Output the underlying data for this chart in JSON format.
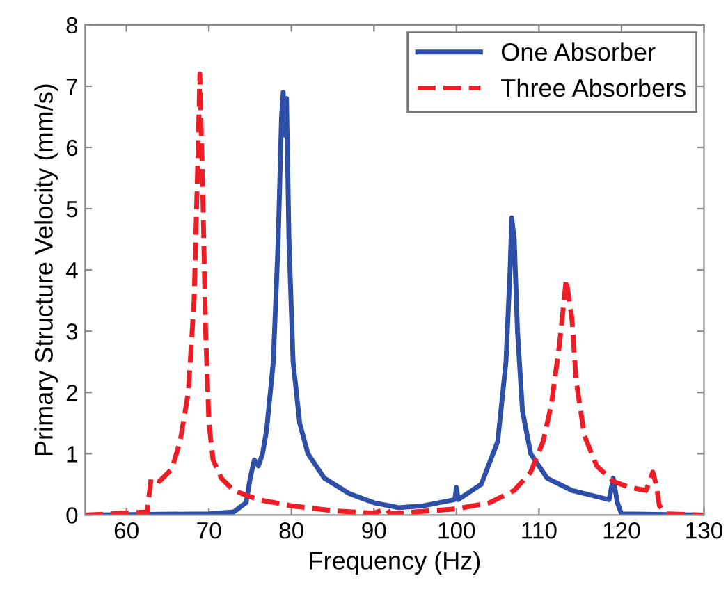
{
  "chart_data": {
    "type": "line",
    "xlabel": "Frequency (Hz)",
    "ylabel": "Primary Structure Velocity (mm/s)",
    "xlim": [
      55,
      130
    ],
    "xticks": [
      60,
      70,
      80,
      90,
      100,
      110,
      120,
      130
    ],
    "ylim": [
      0,
      8
    ],
    "yticks": [
      0,
      1,
      2,
      3,
      4,
      5,
      6,
      7,
      8
    ],
    "grid": false,
    "legend": "top right",
    "marker": "none",
    "series": [
      {
        "name": "One Absorber",
        "color": "#2e4fa8",
        "line_style": "solid",
        "x": [
          55,
          70,
          73,
          74.5,
          75,
          75.5,
          76,
          76.5,
          77,
          77.8,
          78.4,
          78.8,
          79,
          79.2,
          79.4,
          79.7,
          80.2,
          81,
          82,
          84,
          87,
          90,
          93,
          96,
          99.8,
          100,
          100.2,
          103,
          105,
          106,
          106.5,
          106.7,
          107,
          107.4,
          108,
          109,
          111,
          114,
          117,
          118.5,
          119,
          119.5,
          120,
          130
        ],
        "values": [
          0,
          0.02,
          0.05,
          0.2,
          0.6,
          0.9,
          0.8,
          1.0,
          1.4,
          2.5,
          4.5,
          6.5,
          6.9,
          6.2,
          6.8,
          4.5,
          2.5,
          1.5,
          1.0,
          0.6,
          0.35,
          0.2,
          0.12,
          0.15,
          0.25,
          0.45,
          0.25,
          0.5,
          1.2,
          2.5,
          4.0,
          4.85,
          4.5,
          3.0,
          1.7,
          1.0,
          0.6,
          0.4,
          0.3,
          0.25,
          0.6,
          0.2,
          0.02,
          0
        ]
      },
      {
        "name": "Three Absorbers",
        "color": "#ee1c25",
        "line_style": "dashed",
        "x": [
          55,
          62.5,
          63,
          64,
          65.5,
          66.5,
          67.5,
          68.2,
          68.6,
          68.9,
          69.3,
          69.6,
          70,
          70.5,
          71.5,
          73,
          76,
          80,
          85,
          90,
          91.5,
          92,
          95,
          100,
          104,
          107,
          109,
          110.5,
          111.5,
          112.5,
          113.3,
          114,
          114.5,
          115.5,
          117,
          119,
          121,
          123,
          123.8,
          124.2,
          124.6,
          125.5,
          130
        ],
        "values": [
          0,
          0.05,
          0.6,
          0.55,
          0.75,
          1.2,
          2.0,
          3.5,
          5.5,
          7.2,
          5.0,
          3.0,
          1.5,
          0.9,
          0.6,
          0.4,
          0.25,
          0.15,
          0.07,
          0.03,
          0.1,
          0.02,
          0.05,
          0.1,
          0.2,
          0.4,
          0.7,
          1.2,
          1.8,
          2.8,
          3.85,
          3.2,
          2.2,
          1.3,
          0.8,
          0.55,
          0.45,
          0.4,
          0.7,
          0.5,
          0.15,
          0.02,
          0
        ]
      }
    ]
  }
}
